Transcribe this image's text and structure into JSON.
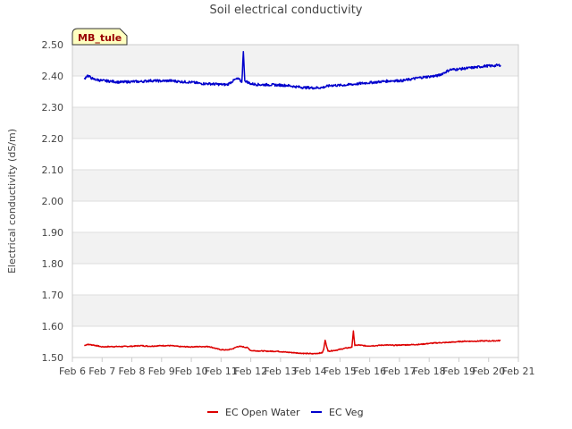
{
  "chart_data": {
    "type": "line",
    "title": "Soil electrical conductivity",
    "ylabel": "Electrical conductivity (dS/m)",
    "xlabel": "",
    "ylim": [
      1.5,
      2.5
    ],
    "yticks": [
      "1.50",
      "1.60",
      "1.70",
      "1.80",
      "1.90",
      "2.00",
      "2.10",
      "2.20",
      "2.30",
      "2.40",
      "2.50"
    ],
    "xlim": [
      0,
      15
    ],
    "xticks": [
      "Feb 6",
      "Feb 7",
      "Feb 8",
      "Feb 9",
      "Feb 10",
      "Feb 11",
      "Feb 12",
      "Feb 13",
      "Feb 14",
      "Feb 15",
      "Feb 16",
      "Feb 17",
      "Feb 18",
      "Feb 19",
      "Feb 20",
      "Feb 21"
    ],
    "grid": true,
    "legend_position": "bottom-center",
    "station_label": "MB_tule",
    "series": [
      {
        "name": "EC Open Water",
        "color": "#dd0000",
        "x": [
          0.4,
          0.5,
          0.7,
          1.0,
          1.3,
          1.6,
          2.0,
          2.3,
          2.6,
          3.0,
          3.3,
          3.6,
          4.0,
          4.3,
          4.6,
          4.9,
          5.0,
          5.2,
          5.4,
          5.55,
          5.7,
          5.9,
          6.0,
          6.3,
          6.6,
          6.9,
          7.2,
          7.5,
          7.8,
          8.1,
          8.4,
          8.45,
          8.5,
          8.6,
          8.9,
          9.2,
          9.4,
          9.45,
          9.5,
          9.6,
          9.9,
          10.2,
          10.5,
          10.8,
          11.1,
          11.4,
          11.7,
          12.0,
          12.3,
          12.6,
          12.9,
          13.2,
          13.5,
          13.8,
          14.1,
          14.4
        ],
        "y": [
          1.538,
          1.542,
          1.54,
          1.534,
          1.535,
          1.535,
          1.536,
          1.538,
          1.536,
          1.538,
          1.538,
          1.535,
          1.534,
          1.535,
          1.535,
          1.527,
          1.525,
          1.524,
          1.528,
          1.535,
          1.535,
          1.531,
          1.522,
          1.521,
          1.52,
          1.52,
          1.517,
          1.515,
          1.513,
          1.512,
          1.515,
          1.525,
          1.555,
          1.52,
          1.524,
          1.53,
          1.533,
          1.585,
          1.538,
          1.54,
          1.537,
          1.538,
          1.54,
          1.539,
          1.54,
          1.541,
          1.542,
          1.545,
          1.547,
          1.548,
          1.55,
          1.552,
          1.552,
          1.553,
          1.553,
          1.554
        ]
      },
      {
        "name": "EC Veg",
        "color": "#0000cc",
        "x": [
          0.4,
          0.5,
          0.7,
          1.0,
          1.3,
          1.6,
          2.0,
          2.3,
          2.6,
          3.0,
          3.3,
          3.6,
          4.0,
          4.3,
          4.6,
          5.0,
          5.2,
          5.3,
          5.5,
          5.6,
          5.7,
          5.75,
          5.8,
          6.0,
          6.3,
          6.6,
          6.9,
          7.2,
          7.5,
          7.8,
          8.1,
          8.4,
          8.7,
          9.0,
          9.3,
          9.6,
          9.9,
          10.2,
          10.5,
          10.8,
          11.1,
          11.4,
          11.7,
          12.0,
          12.3,
          12.5,
          12.7,
          13.0,
          13.3,
          13.6,
          13.9,
          14.1,
          14.4
        ],
        "y": [
          2.39,
          2.402,
          2.39,
          2.385,
          2.383,
          2.38,
          2.382,
          2.382,
          2.385,
          2.384,
          2.385,
          2.382,
          2.38,
          2.376,
          2.375,
          2.373,
          2.372,
          2.378,
          2.39,
          2.39,
          2.38,
          2.478,
          2.385,
          2.375,
          2.372,
          2.372,
          2.371,
          2.37,
          2.366,
          2.363,
          2.362,
          2.363,
          2.37,
          2.37,
          2.372,
          2.375,
          2.378,
          2.38,
          2.383,
          2.385,
          2.385,
          2.39,
          2.395,
          2.398,
          2.401,
          2.41,
          2.42,
          2.422,
          2.425,
          2.428,
          2.432,
          2.432,
          2.435
        ]
      }
    ]
  }
}
